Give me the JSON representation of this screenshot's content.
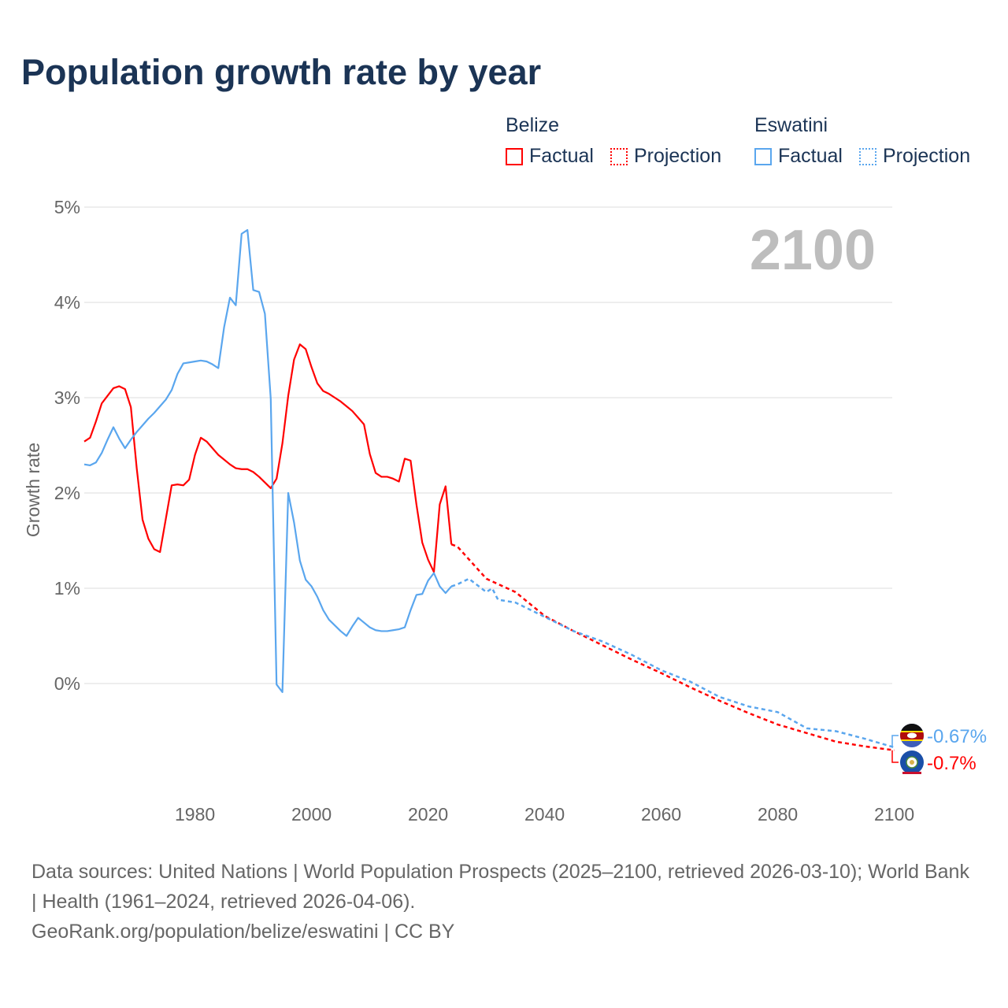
{
  "title": "Population growth rate by year",
  "legend": {
    "groups": [
      {
        "name": "Belize",
        "factual": "Factual",
        "projection": "Projection",
        "color": "#ff0000"
      },
      {
        "name": "Eswatini",
        "factual": "Factual",
        "projection": "Projection",
        "color": "#5aa6ee"
      }
    ]
  },
  "footer": {
    "sources": "Data sources: United Nations | World Population Prospects (2025–2100, retrieved 2026-03-10); World Bank | Health (1961–2024, retrieved 2026-04-06).",
    "credit": "GeoRank.org/population/belize/eswatini | CC BY"
  },
  "chart_data": {
    "type": "line",
    "title": "Population growth rate by year",
    "ylabel": "Growth rate",
    "xlabel": "",
    "year_label": "2100",
    "xlim": [
      1961,
      2100
    ],
    "ylim": [
      -1,
      5
    ],
    "x_ticks": [
      1980,
      2000,
      2020,
      2040,
      2060,
      2080,
      2100
    ],
    "y_ticks": [
      {
        "v": 0,
        "label": "0%"
      },
      {
        "v": 1,
        "label": "1%"
      },
      {
        "v": 2,
        "label": "2%"
      },
      {
        "v": 3,
        "label": "3%"
      },
      {
        "v": 4,
        "label": "4%"
      },
      {
        "v": 5,
        "label": "5%"
      }
    ],
    "grid": true,
    "series": [
      {
        "name": "Belize",
        "color": "#ff0000",
        "end_label": "-0.7%",
        "factual": {
          "x": [
            1961,
            1962,
            1963,
            1964,
            1965,
            1966,
            1967,
            1968,
            1969,
            1970,
            1971,
            1972,
            1973,
            1974,
            1975,
            1976,
            1977,
            1978,
            1979,
            1980,
            1981,
            1982,
            1983,
            1984,
            1985,
            1986,
            1987,
            1988,
            1989,
            1990,
            1991,
            1992,
            1993,
            1994,
            1995,
            1996,
            1997,
            1998,
            1999,
            2000,
            2001,
            2002,
            2003,
            2004,
            2005,
            2006,
            2007,
            2008,
            2009,
            2010,
            2011,
            2012,
            2013,
            2014,
            2015,
            2016,
            2017,
            2018,
            2019,
            2020,
            2021,
            2022,
            2023,
            2024
          ],
          "y": [
            2.54,
            2.58,
            2.75,
            2.94,
            3.02,
            3.1,
            3.12,
            3.09,
            2.9,
            2.26,
            1.72,
            1.52,
            1.41,
            1.38,
            1.73,
            2.08,
            2.09,
            2.08,
            2.14,
            2.4,
            2.58,
            2.54,
            2.47,
            2.4,
            2.35,
            2.3,
            2.26,
            2.25,
            2.25,
            2.22,
            2.17,
            2.11,
            2.05,
            2.15,
            2.52,
            3.02,
            3.4,
            3.56,
            3.51,
            3.32,
            3.15,
            3.07,
            3.04,
            3.0,
            2.96,
            2.91,
            2.86,
            2.79,
            2.72,
            2.41,
            2.21,
            2.17,
            2.17,
            2.15,
            2.12,
            2.36,
            2.34,
            1.88,
            1.48,
            1.3,
            1.17,
            1.88,
            2.07,
            1.46
          ]
        },
        "projection": {
          "x": [
            2024,
            2025,
            2030,
            2035,
            2040,
            2045,
            2050,
            2055,
            2060,
            2065,
            2070,
            2075,
            2080,
            2085,
            2090,
            2095,
            2100
          ],
          "y": [
            1.46,
            1.44,
            1.1,
            0.96,
            0.71,
            0.55,
            0.4,
            0.25,
            0.11,
            -0.04,
            -0.18,
            -0.31,
            -0.43,
            -0.52,
            -0.61,
            -0.66,
            -0.7
          ]
        }
      },
      {
        "name": "Eswatini",
        "color": "#5aa6ee",
        "end_label": "-0.67%",
        "factual": {
          "x": [
            1961,
            1962,
            1963,
            1964,
            1965,
            1966,
            1967,
            1968,
            1969,
            1970,
            1971,
            1972,
            1973,
            1974,
            1975,
            1976,
            1977,
            1978,
            1979,
            1980,
            1981,
            1982,
            1983,
            1984,
            1985,
            1986,
            1987,
            1988,
            1989,
            1990,
            1991,
            1992,
            1993,
            1994,
            1995,
            1996,
            1997,
            1998,
            1999,
            2000,
            2001,
            2002,
            2003,
            2004,
            2005,
            2006,
            2007,
            2008,
            2009,
            2010,
            2011,
            2012,
            2013,
            2014,
            2015,
            2016,
            2017,
            2018,
            2019,
            2020,
            2021,
            2022,
            2023,
            2024
          ],
          "y": [
            2.3,
            2.29,
            2.32,
            2.42,
            2.56,
            2.69,
            2.57,
            2.47,
            2.56,
            2.64,
            2.71,
            2.78,
            2.84,
            2.91,
            2.98,
            3.08,
            3.25,
            3.36,
            3.37,
            3.38,
            3.39,
            3.38,
            3.35,
            3.31,
            3.74,
            4.05,
            3.97,
            4.72,
            4.76,
            4.13,
            4.11,
            3.88,
            2.99,
            -0.01,
            -0.09,
            2.0,
            1.69,
            1.29,
            1.09,
            1.02,
            0.91,
            0.77,
            0.67,
            0.61,
            0.55,
            0.5,
            0.6,
            0.69,
            0.64,
            0.59,
            0.56,
            0.55,
            0.55,
            0.56,
            0.57,
            0.59,
            0.77,
            0.93,
            0.94,
            1.08,
            1.16,
            1.02,
            0.95,
            1.02
          ]
        },
        "projection": {
          "x": [
            2024,
            2025,
            2027,
            2030,
            2031,
            2032,
            2035,
            2040,
            2045,
            2050,
            2055,
            2060,
            2065,
            2070,
            2075,
            2080,
            2085,
            2090,
            2095,
            2100
          ],
          "y": [
            1.02,
            1.04,
            1.1,
            0.96,
            1.0,
            0.88,
            0.85,
            0.7,
            0.55,
            0.44,
            0.3,
            0.14,
            0.02,
            -0.14,
            -0.24,
            -0.3,
            -0.47,
            -0.5,
            -0.58,
            -0.67
          ]
        }
      }
    ]
  }
}
